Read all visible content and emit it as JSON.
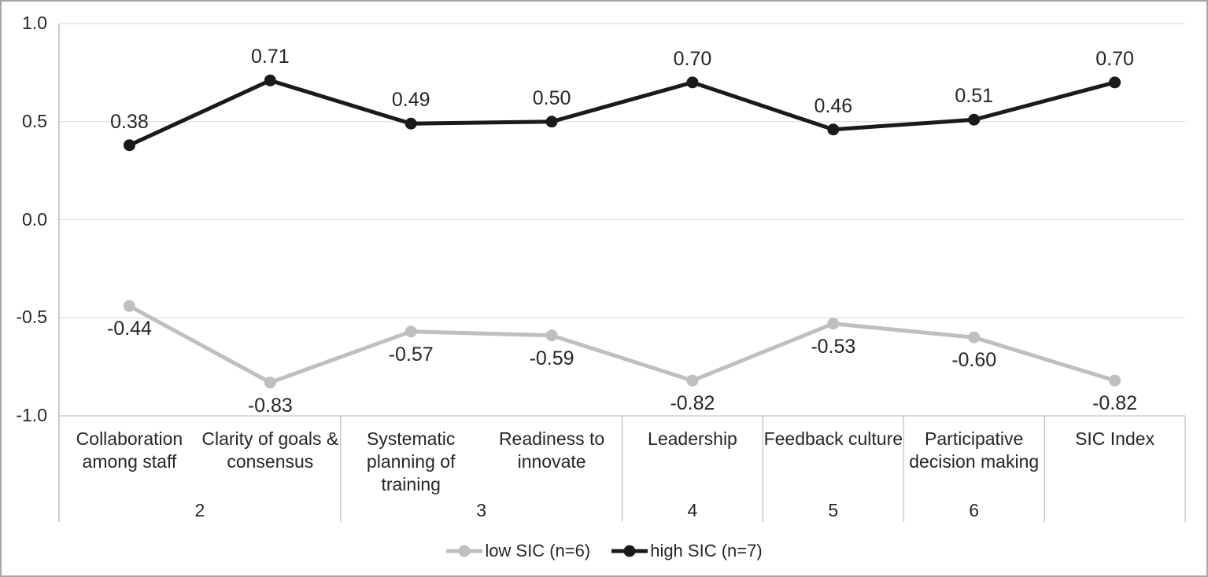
{
  "chart_data": {
    "type": "line",
    "title": "",
    "xlabel": "",
    "ylabel": "",
    "grid": true,
    "legend_position": "bottom",
    "ylim": [
      -1.0,
      1.0
    ],
    "y_ticks": [
      {
        "value": 1.0,
        "label": "1.0"
      },
      {
        "value": 0.5,
        "label": "0.5"
      },
      {
        "value": 0.0,
        "label": "0.0"
      },
      {
        "value": -0.5,
        "label": "-0.5"
      },
      {
        "value": -1.0,
        "label": "-1.0"
      }
    ],
    "categories": [
      {
        "lines": [
          "Collaboration",
          "among staff"
        ]
      },
      {
        "lines": [
          "Clarity of goals &",
          "consensus"
        ]
      },
      {
        "lines": [
          "Systematic",
          "planning of",
          "training"
        ]
      },
      {
        "lines": [
          "Readiness to",
          "innovate"
        ]
      },
      {
        "lines": [
          "Leadership"
        ]
      },
      {
        "lines": [
          "Feedback culture"
        ]
      },
      {
        "lines": [
          "Participative",
          "decision making"
        ]
      },
      {
        "lines": [
          "SIC Index"
        ]
      }
    ],
    "category_groups": [
      {
        "label": "2",
        "span": 2
      },
      {
        "label": "3",
        "span": 2
      },
      {
        "label": "4",
        "span": 1
      },
      {
        "label": "5",
        "span": 1
      },
      {
        "label": "6",
        "span": 1
      },
      {
        "label": "",
        "span": 1
      }
    ],
    "series": [
      {
        "name": "low SIC (n=6)",
        "color": "#bfbfbf",
        "label_position": "below",
        "values": [
          -0.44,
          -0.83,
          -0.57,
          -0.59,
          -0.82,
          -0.53,
          -0.6,
          -0.82
        ],
        "labels": [
          "-0.44",
          "-0.83",
          "-0.57",
          "-0.59",
          "-0.82",
          "-0.53",
          "-0.60",
          "-0.82"
        ]
      },
      {
        "name": "high SIC (n=7)",
        "color": "#1a1a1a",
        "label_position": "above",
        "values": [
          0.38,
          0.71,
          0.49,
          0.5,
          0.7,
          0.46,
          0.51,
          0.7
        ],
        "labels": [
          "0.38",
          "0.71",
          "0.49",
          "0.50",
          "0.70",
          "0.46",
          "0.51",
          "0.70"
        ]
      }
    ],
    "colors": {
      "gridline": "#d9d9d9",
      "axis": "#b7b7b7",
      "separator": "#c9c9c9",
      "text": "#262626",
      "border": "#a6a6a6",
      "background": "#ffffff"
    }
  }
}
